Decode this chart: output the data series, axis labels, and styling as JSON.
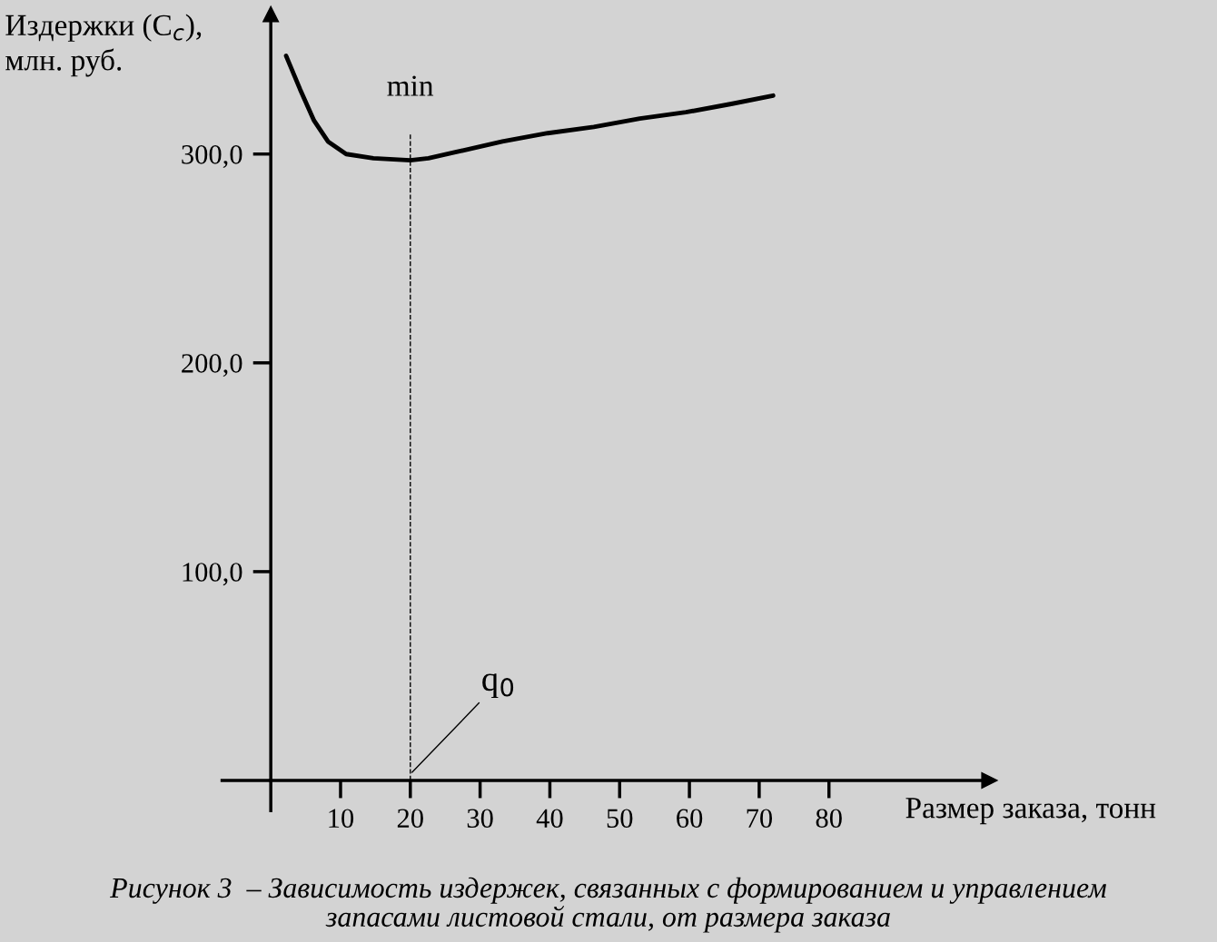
{
  "chart_data": {
    "type": "line",
    "ylabel": "Издержки (C$_{c}$),\nмлн. руб.",
    "xlabel": "Размер заказа, тонн",
    "x": [
      2.2,
      4.2,
      6.2,
      8.2,
      10.8,
      14.7,
      20,
      22.6,
      26.6,
      33.2,
      39.7,
      46.3,
      52.9,
      59.5,
      66,
      72
    ],
    "series": [
      {
        "color": "#000000",
        "values": [
          347,
          331,
          316,
          306,
          300,
          298,
          297,
          298,
          301,
          306,
          310,
          313,
          317,
          320,
          324,
          328
        ]
      }
    ],
    "xlim": [
      0,
      103
    ],
    "ylim": [
      0,
      367
    ],
    "xticks": [
      10,
      20,
      30,
      40,
      50,
      60,
      70,
      80
    ],
    "yticks": [
      {
        "value": 100,
        "label": "100,0"
      },
      {
        "value": 200,
        "label": "200,0"
      },
      {
        "value": 300,
        "label": "300,0"
      }
    ],
    "ref_lines": [
      {
        "axis": "x",
        "value": 20,
        "label": null,
        "color": "#000000",
        "line_style": "dashed"
      }
    ],
    "annotations": [
      "min",
      {
        "text": "q$_{0}$",
        "x": 20,
        "y": 3
      },
      "Рисунок 3  – Зависимость издержек, связанных с формированием и управлением\nзапасами листовой стали, от размера заказа"
    ],
    "grid": false,
    "line_style": "solid",
    "marker": "none"
  }
}
